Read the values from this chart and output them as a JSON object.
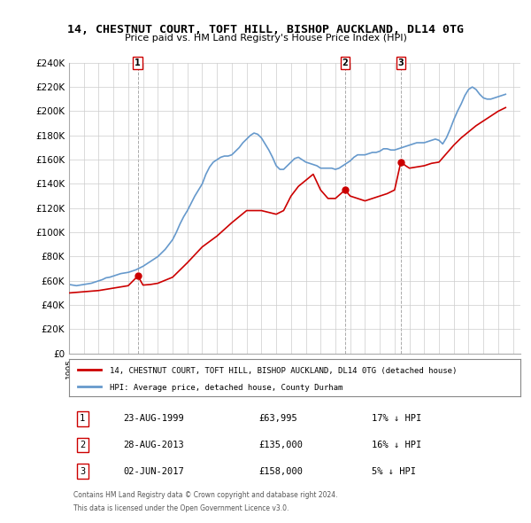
{
  "title": "14, CHESTNUT COURT, TOFT HILL, BISHOP AUCKLAND, DL14 0TG",
  "subtitle": "Price paid vs. HM Land Registry's House Price Index (HPI)",
  "ylabel": "",
  "ylim": [
    0,
    240000
  ],
  "yticks": [
    0,
    20000,
    40000,
    60000,
    80000,
    100000,
    120000,
    140000,
    160000,
    180000,
    200000,
    220000,
    240000
  ],
  "ytick_labels": [
    "£0",
    "£20K",
    "£40K",
    "£60K",
    "£80K",
    "£100K",
    "£120K",
    "£140K",
    "£160K",
    "£180K",
    "£200K",
    "£220K",
    "£240K"
  ],
  "xlim_start": 1995.0,
  "xlim_end": 2025.5,
  "background_color": "#ffffff",
  "grid_color": "#cccccc",
  "hpi_color": "#6699cc",
  "price_color": "#cc0000",
  "transactions": [
    {
      "num": 1,
      "date": "23-AUG-1999",
      "price": 63995,
      "year": 1999.65,
      "hpi_pct": "17%"
    },
    {
      "num": 2,
      "date": "28-AUG-2013",
      "price": 135000,
      "year": 2013.65,
      "hpi_pct": "16%"
    },
    {
      "num": 3,
      "date": "02-JUN-2017",
      "price": 158000,
      "year": 2017.42,
      "hpi_pct": "5%"
    }
  ],
  "legend_property": "14, CHESTNUT COURT, TOFT HILL, BISHOP AUCKLAND, DL14 0TG (detached house)",
  "legend_hpi": "HPI: Average price, detached house, County Durham",
  "footer1": "Contains HM Land Registry data © Crown copyright and database right 2024.",
  "footer2": "This data is licensed under the Open Government Licence v3.0.",
  "hpi_data": {
    "years": [
      1995.0,
      1995.25,
      1995.5,
      1995.75,
      1996.0,
      1996.25,
      1996.5,
      1996.75,
      1997.0,
      1997.25,
      1997.5,
      1997.75,
      1998.0,
      1998.25,
      1998.5,
      1998.75,
      1999.0,
      1999.25,
      1999.5,
      1999.75,
      2000.0,
      2000.25,
      2000.5,
      2000.75,
      2001.0,
      2001.25,
      2001.5,
      2001.75,
      2002.0,
      2002.25,
      2002.5,
      2002.75,
      2003.0,
      2003.25,
      2003.5,
      2003.75,
      2004.0,
      2004.25,
      2004.5,
      2004.75,
      2005.0,
      2005.25,
      2005.5,
      2005.75,
      2006.0,
      2006.25,
      2006.5,
      2006.75,
      2007.0,
      2007.25,
      2007.5,
      2007.75,
      2008.0,
      2008.25,
      2008.5,
      2008.75,
      2009.0,
      2009.25,
      2009.5,
      2009.75,
      2010.0,
      2010.25,
      2010.5,
      2010.75,
      2011.0,
      2011.25,
      2011.5,
      2011.75,
      2012.0,
      2012.25,
      2012.5,
      2012.75,
      2013.0,
      2013.25,
      2013.5,
      2013.75,
      2014.0,
      2014.25,
      2014.5,
      2014.75,
      2015.0,
      2015.25,
      2015.5,
      2015.75,
      2016.0,
      2016.25,
      2016.5,
      2016.75,
      2017.0,
      2017.25,
      2017.5,
      2017.75,
      2018.0,
      2018.25,
      2018.5,
      2018.75,
      2019.0,
      2019.25,
      2019.5,
      2019.75,
      2020.0,
      2020.25,
      2020.5,
      2020.75,
      2021.0,
      2021.25,
      2021.5,
      2021.75,
      2022.0,
      2022.25,
      2022.5,
      2022.75,
      2023.0,
      2023.25,
      2023.5,
      2023.75,
      2024.0,
      2024.25,
      2024.5
    ],
    "values": [
      57000,
      56500,
      56000,
      56500,
      57000,
      57500,
      58000,
      59000,
      60000,
      61000,
      62500,
      63000,
      64000,
      65000,
      66000,
      66500,
      67000,
      68000,
      69000,
      70500,
      72000,
      74000,
      76000,
      78000,
      80000,
      83000,
      86000,
      90000,
      94000,
      100000,
      107000,
      113000,
      118000,
      124000,
      130000,
      135000,
      140000,
      148000,
      154000,
      158000,
      160000,
      162000,
      163000,
      163000,
      164000,
      167000,
      170000,
      174000,
      177000,
      180000,
      182000,
      181000,
      178000,
      173000,
      168000,
      162000,
      155000,
      152000,
      152000,
      155000,
      158000,
      161000,
      162000,
      160000,
      158000,
      157000,
      156000,
      155000,
      153000,
      153000,
      153000,
      153000,
      152000,
      153000,
      155000,
      157000,
      159000,
      162000,
      164000,
      164000,
      164000,
      165000,
      166000,
      166000,
      167000,
      169000,
      169000,
      168000,
      168000,
      169000,
      170000,
      171000,
      172000,
      173000,
      174000,
      174000,
      174000,
      175000,
      176000,
      177000,
      176000,
      173000,
      178000,
      185000,
      193000,
      200000,
      206000,
      213000,
      218000,
      220000,
      218000,
      214000,
      211000,
      210000,
      210000,
      211000,
      212000,
      213000,
      214000
    ]
  },
  "property_data": {
    "years": [
      1995.0,
      1995.5,
      1996.0,
      1996.5,
      1997.0,
      1997.5,
      1998.0,
      1998.5,
      1999.0,
      1999.65,
      2000.0,
      2000.5,
      2001.0,
      2002.0,
      2003.0,
      2004.0,
      2005.0,
      2006.0,
      2007.0,
      2008.0,
      2009.0,
      2009.5,
      2010.0,
      2010.5,
      2011.0,
      2011.5,
      2012.0,
      2012.5,
      2013.0,
      2013.65,
      2014.0,
      2014.5,
      2015.0,
      2015.5,
      2016.0,
      2016.5,
      2017.0,
      2017.42,
      2017.75,
      2018.0,
      2018.5,
      2019.0,
      2019.5,
      2020.0,
      2020.5,
      2021.0,
      2021.5,
      2022.0,
      2022.5,
      2023.0,
      2023.5,
      2024.0,
      2024.5
    ],
    "values": [
      50000,
      50500,
      51000,
      51500,
      52000,
      53000,
      54000,
      55000,
      56000,
      63995,
      56500,
      57000,
      58000,
      63000,
      75000,
      88000,
      97000,
      108000,
      118000,
      118000,
      115000,
      118000,
      130000,
      138000,
      143000,
      148000,
      135000,
      128000,
      128000,
      135000,
      130000,
      128000,
      126000,
      128000,
      130000,
      132000,
      135000,
      158000,
      155000,
      153000,
      154000,
      155000,
      157000,
      158000,
      165000,
      172000,
      178000,
      183000,
      188000,
      192000,
      196000,
      200000,
      203000
    ]
  }
}
